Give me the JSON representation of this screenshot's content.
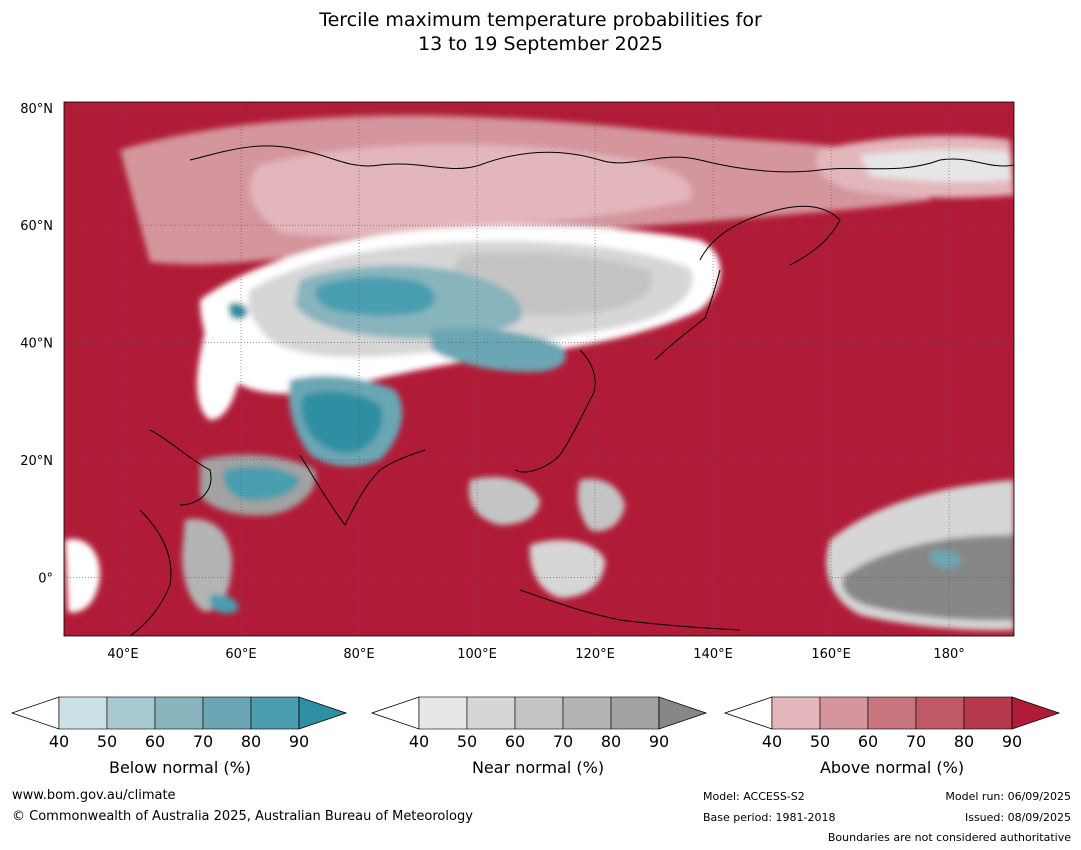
{
  "title": {
    "line1": "Tercile maximum temperature probabilities for",
    "line2": "13 to 19 September 2025"
  },
  "map": {
    "lat_labels": [
      "80°N",
      "60°N",
      "40°N",
      "20°N",
      "0°"
    ],
    "lon_labels": [
      "40°E",
      "60°E",
      "80°E",
      "100°E",
      "120°E",
      "140°E",
      "160°E",
      "180°"
    ],
    "lat_range": [
      -10,
      81
    ],
    "lon_range": [
      30,
      191
    ]
  },
  "legends": [
    {
      "label": "Below normal (%)",
      "ticks": [
        "40",
        "50",
        "60",
        "70",
        "80",
        "90"
      ],
      "colors": [
        "#c9e1e7",
        "#a8c9d0",
        "#88b4be",
        "#6aa6b3",
        "#4a9eaf",
        "#2f8fa3"
      ]
    },
    {
      "label": "Near normal (%)",
      "ticks": [
        "40",
        "50",
        "60",
        "70",
        "80",
        "90"
      ],
      "colors": [
        "#e6e6e6",
        "#d6d6d6",
        "#c4c4c4",
        "#b4b4b4",
        "#a2a2a2",
        "#878787"
      ]
    },
    {
      "label": "Above normal (%)",
      "ticks": [
        "40",
        "50",
        "60",
        "70",
        "80",
        "90"
      ],
      "colors": [
        "#e3b6bc",
        "#d4959d",
        "#c97580",
        "#bf5966",
        "#b53a4b",
        "#b01c37"
      ]
    }
  ],
  "colors": {
    "above_dominant": "#b01c37",
    "gridline": "#555555"
  },
  "footer": {
    "website": "www.bom.gov.au/climate",
    "copyright": "© Commonwealth of Australia 2025, Australian Bureau of Meteorology",
    "model": "Model: ACCESS-S2",
    "base_period": "Base period: 1981-2018",
    "model_run": "Model run: 06/09/2025",
    "issued": "Issued: 08/09/2025",
    "boundaries": "Boundaries are not considered authoritative"
  }
}
